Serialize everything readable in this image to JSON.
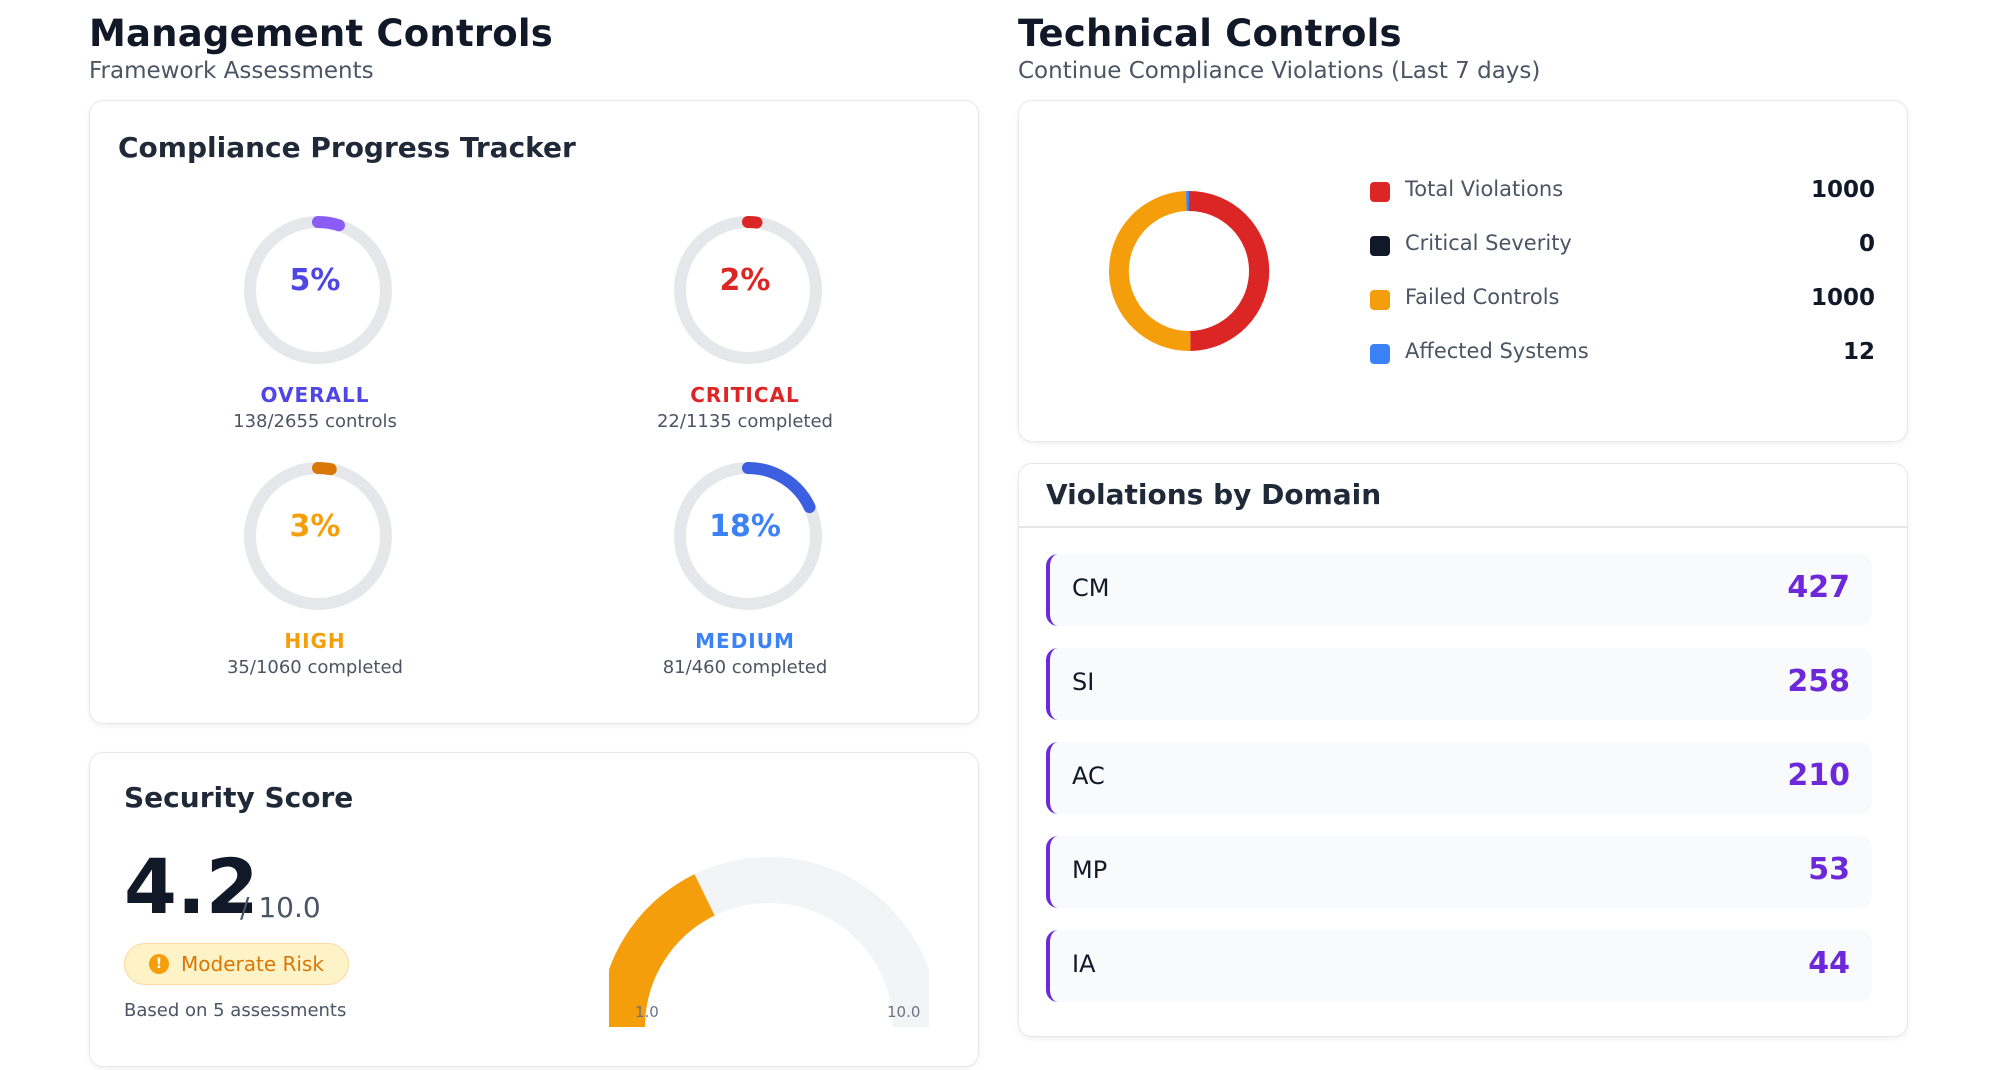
{
  "management": {
    "title": "Management Controls",
    "subtitle": "Framework Assessments",
    "progress_card": {
      "title": "Compliance Progress Tracker",
      "rings": [
        {
          "key": "overall",
          "percent_text": "5%",
          "fraction": 0.05,
          "label": "OVERALL",
          "detail": "138/2655 controls",
          "color": "#8b5cf6",
          "text_color": "#4f46e5"
        },
        {
          "key": "critical",
          "percent_text": "2%",
          "fraction": 0.02,
          "label": "CRITICAL",
          "detail": "22/1135 completed",
          "color": "#dc2626",
          "text_color": "#dc2626"
        },
        {
          "key": "high",
          "percent_text": "3%",
          "fraction": 0.03,
          "label": "HIGH",
          "detail": "35/1060 completed",
          "color": "#d97706",
          "text_color": "#f59e0b"
        },
        {
          "key": "medium",
          "percent_text": "18%",
          "fraction": 0.18,
          "label": "MEDIUM",
          "detail": "81/460 completed",
          "color": "#3b5fe0",
          "text_color": "#3b82f6"
        }
      ]
    },
    "security_card": {
      "title": "Security Score",
      "score": "4.2",
      "max_text": "/ 10.0",
      "risk_icon": "exclamation-icon",
      "risk_glyph": "!",
      "risk_label": "Moderate Risk",
      "based_on": "Based on 5 assessments",
      "gauge_min": "1.0",
      "gauge_max": "10.0",
      "gauge_value": 4.2,
      "gauge_range": [
        1,
        10
      ],
      "gauge_color": "#f59e0b",
      "gauge_track_color": "#f3f4f6"
    }
  },
  "technical": {
    "title": "Technical Controls",
    "subtitle": "Continue Compliance Violations (Last 7 days)",
    "summary_card": {
      "legend": [
        {
          "name": "Total Violations",
          "value": "1000",
          "color": "#dc2626"
        },
        {
          "name": "Critical Severity",
          "value": "0",
          "color": "#111827"
        },
        {
          "name": "Failed Controls",
          "value": "1000",
          "color": "#f59e0b"
        },
        {
          "name": "Affected Systems",
          "value": "12",
          "color": "#3b82f6"
        }
      ]
    },
    "domain_card": {
      "title": "Violations by Domain",
      "rows": [
        {
          "code": "CM",
          "count": "427"
        },
        {
          "code": "SI",
          "count": "258"
        },
        {
          "code": "AC",
          "count": "210"
        },
        {
          "code": "MP",
          "count": "53"
        },
        {
          "code": "IA",
          "count": "44"
        }
      ]
    }
  },
  "chart_data": {
    "type": "pie",
    "categories": [
      "Total Violations",
      "Critical Severity",
      "Failed Controls",
      "Affected Systems"
    ],
    "values": [
      1000,
      0,
      1000,
      12
    ],
    "colors": [
      "#dc2626",
      "#111827",
      "#f59e0b",
      "#3b82f6"
    ],
    "legend": "right"
  }
}
